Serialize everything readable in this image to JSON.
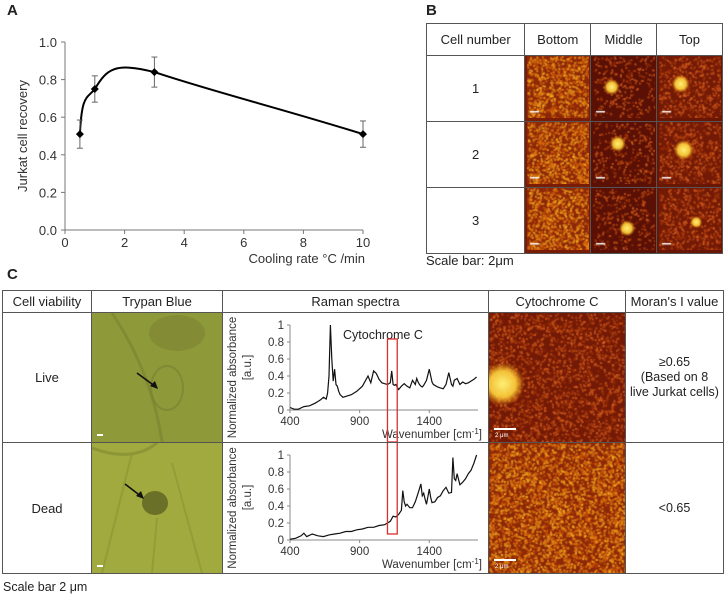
{
  "panels": {
    "a": "A",
    "b": "B",
    "c": "C"
  },
  "chart_data": [
    {
      "type": "line",
      "title": "",
      "xlabel": "Cooling rate  °C /min",
      "ylabel": "Jurkat cell recovery",
      "xlim": [
        0,
        10
      ],
      "ylim": [
        0.0,
        1.0
      ],
      "xticks": [
        "0",
        "2",
        "4",
        "6",
        "8",
        "10"
      ],
      "yticks": [
        "0.0",
        "0.2",
        "0.4",
        "0.6",
        "0.8",
        "1.0"
      ],
      "x": [
        0.5,
        1,
        3,
        10
      ],
      "y": [
        0.51,
        0.75,
        0.84,
        0.51
      ],
      "error": [
        0.075,
        0.07,
        0.08,
        0.07
      ],
      "grid": false
    },
    {
      "type": "line",
      "name": "raman-live",
      "xlabel": "Wavenumber [cm",
      "xlabel_sup": "-1",
      "xlabel_end": "]",
      "ylabel": "Normalized absorbance",
      "ylabel2": "[a.u.]",
      "annotation": "Cytochrome C",
      "xlim": [
        400,
        1750
      ],
      "ylim": [
        0,
        1
      ],
      "xticks": [
        "400",
        "900",
        "1400"
      ],
      "yticks": [
        "0",
        "0.2",
        "0.4",
        "0.6",
        "0.8",
        "1"
      ],
      "highlight_range": [
        1100,
        1170
      ],
      "x": [
        400,
        430,
        460,
        500,
        540,
        580,
        600,
        620,
        640,
        660,
        670,
        680,
        690,
        700,
        710,
        720,
        730,
        740,
        750,
        760,
        780,
        800,
        840,
        880,
        920,
        960,
        980,
        1000,
        1020,
        1040,
        1060,
        1080,
        1100,
        1120,
        1130,
        1140,
        1150,
        1160,
        1180,
        1200,
        1220,
        1240,
        1260,
        1280,
        1300,
        1310,
        1320,
        1330,
        1340,
        1350,
        1360,
        1380,
        1400,
        1420,
        1430,
        1440,
        1460,
        1480,
        1500,
        1520,
        1540,
        1560,
        1570,
        1580,
        1600,
        1620,
        1640,
        1660,
        1680,
        1700,
        1720,
        1740
      ],
      "y": [
        0.03,
        0.01,
        0.01,
        0.04,
        0.05,
        0.08,
        0.1,
        0.12,
        0.15,
        0.13,
        0.2,
        0.4,
        1.0,
        0.6,
        0.34,
        0.48,
        0.3,
        0.28,
        0.22,
        0.18,
        0.15,
        0.16,
        0.18,
        0.22,
        0.28,
        0.4,
        0.32,
        0.46,
        0.43,
        0.36,
        0.32,
        0.31,
        0.3,
        0.32,
        0.46,
        0.3,
        0.29,
        0.3,
        0.24,
        0.28,
        0.31,
        0.28,
        0.26,
        0.35,
        0.3,
        0.37,
        0.33,
        0.3,
        0.28,
        0.27,
        0.29,
        0.35,
        0.48,
        0.33,
        0.3,
        0.29,
        0.27,
        0.26,
        0.25,
        0.3,
        0.44,
        0.3,
        0.28,
        0.35,
        0.37,
        0.3,
        0.33,
        0.31,
        0.32,
        0.34,
        0.36,
        0.39
      ]
    },
    {
      "type": "line",
      "name": "raman-dead",
      "xlabel": "Wavenumber [cm",
      "xlabel_sup": "-1",
      "xlabel_end": "]",
      "ylabel": "Normalized absorbance",
      "ylabel2": "[a.u.]",
      "xlim": [
        400,
        1750
      ],
      "ylim": [
        0,
        1
      ],
      "xticks": [
        "400",
        "900",
        "1400"
      ],
      "yticks": [
        "0",
        "0.2",
        "0.4",
        "0.6",
        "0.8",
        "1"
      ],
      "highlight_range": [
        1100,
        1170
      ],
      "x": [
        400,
        440,
        480,
        500,
        520,
        560,
        600,
        640,
        680,
        720,
        760,
        800,
        840,
        880,
        920,
        960,
        1000,
        1040,
        1080,
        1100,
        1120,
        1140,
        1160,
        1180,
        1200,
        1210,
        1220,
        1230,
        1240,
        1260,
        1280,
        1300,
        1320,
        1340,
        1350,
        1360,
        1370,
        1380,
        1400,
        1410,
        1420,
        1440,
        1460,
        1480,
        1500,
        1520,
        1540,
        1560,
        1570,
        1580,
        1590,
        1600,
        1620,
        1640,
        1660,
        1680,
        1700,
        1720,
        1740
      ],
      "y": [
        0.01,
        0.02,
        0.05,
        0.08,
        0.04,
        0.07,
        0.05,
        0.04,
        0.06,
        0.07,
        0.08,
        0.1,
        0.1,
        0.12,
        0.13,
        0.15,
        0.15,
        0.17,
        0.18,
        0.2,
        0.22,
        0.28,
        0.27,
        0.3,
        0.35,
        0.58,
        0.45,
        0.4,
        0.42,
        0.38,
        0.38,
        0.45,
        0.55,
        0.66,
        0.52,
        0.55,
        0.48,
        0.42,
        0.6,
        0.5,
        0.44,
        0.45,
        0.5,
        0.52,
        0.58,
        0.62,
        0.55,
        0.56,
        0.97,
        0.72,
        0.7,
        0.78,
        0.65,
        0.68,
        0.72,
        0.78,
        0.82,
        0.9,
        1.0
      ]
    }
  ],
  "panel_b": {
    "headers": [
      "Cell number",
      "Bottom",
      "Middle",
      "Top"
    ],
    "rows": [
      "1",
      "2",
      "3"
    ],
    "caption": "Scale bar: 2μm"
  },
  "panel_c": {
    "headers": [
      "Cell viability",
      "Trypan Blue",
      "Raman spectra",
      "Cytochrome C",
      "Moran's I value"
    ],
    "rows": [
      {
        "viability": "Live",
        "moran_line1": "≥0.65",
        "moran_line2": "(Based on 8",
        "moran_line3": "live Jurkat cells)"
      },
      {
        "viability": "Dead",
        "moran_line1": "<0.65",
        "moran_line2": "",
        "moran_line3": ""
      }
    ],
    "scalebar_label": "2 μm",
    "caption": "Scale bar 2 μm"
  },
  "colors": {
    "highlight": "#d9302e",
    "trypan": "#8f9a3a",
    "heat_dark": "#6a1604",
    "heat_bright": "#ffd84a"
  }
}
